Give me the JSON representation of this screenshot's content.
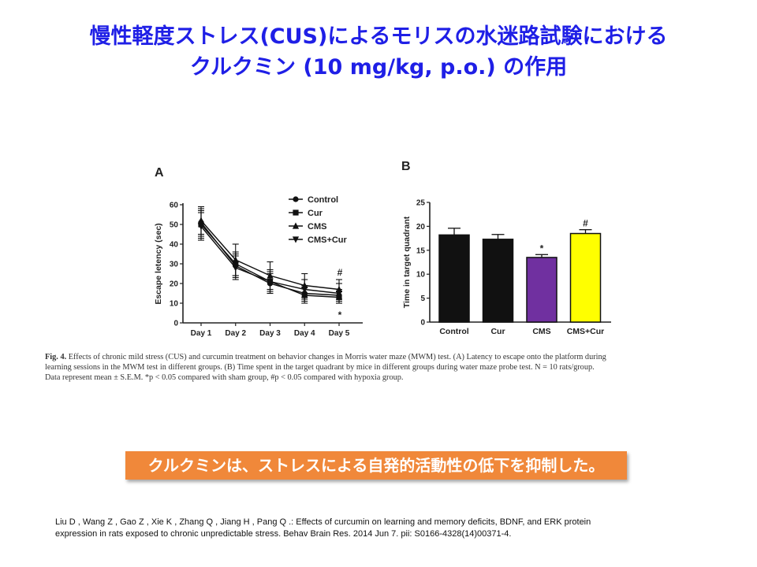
{
  "slide": {
    "title_line1": "慢性軽度ストレス(CUS)によるモリスの水迷路試験における",
    "title_line2": "クルクミン (10 mg/kg, p.o.) の作用",
    "conclusion": "クルクミンは、ストレスによる自発的活動性の低下を抑制した。",
    "citation_line1": "Liu D , Wang Z , Gao Z , Xie K , Zhang Q , Jiang H , Pang Q .: Effects of curcumin on learning and memory deficits, BDNF, and ERK protein",
    "citation_line2": "expression in rats exposed to chronic unpredictable stress. Behav Brain Res. 2014 Jun 7. pii: S0166-4328(14)00371-4."
  },
  "figure_caption": {
    "label": "Fig. 4.",
    "line1": "Effects of chronic mild stress (CUS) and curcumin treatment on behavior changes in Morris water maze (MWM) test. (A) Latency to escape onto the platform during",
    "line2": "learning sessions in the MWM test in different groups. (B) Time spent in the target quadrant by mice in different groups during water maze probe test. N = 10 rats/group.",
    "line3": "Data represent mean ± S.E.M. *p < 0.05 compared with sham group, #p < 0.05 compared with hypoxia group."
  },
  "chart_data": [
    {
      "panel": "A",
      "type": "line",
      "ylabel": "Escape letency (sec)",
      "ylim": [
        0,
        60
      ],
      "yticks": [
        "0",
        "10",
        "20",
        "30",
        "40",
        "50",
        "60"
      ],
      "categories": [
        "Day 1",
        "Day 2",
        "Day 3",
        "Day 4",
        "Day 5"
      ],
      "series": [
        {
          "name": "Control",
          "marker": "circle",
          "values": [
            51,
            29,
            20,
            15,
            14
          ],
          "errors": [
            7,
            6,
            5,
            4,
            3
          ]
        },
        {
          "name": "Cur",
          "marker": "square",
          "values": [
            50,
            30,
            21,
            14,
            13
          ],
          "errors": [
            7,
            6,
            5,
            4,
            3
          ]
        },
        {
          "name": "CMS",
          "marker": "triangle-up",
          "values": [
            52,
            32,
            24,
            19,
            17
          ],
          "errors": [
            7,
            8,
            7,
            6,
            5
          ]
        },
        {
          "name": "CMS+Cur",
          "marker": "triangle-down",
          "values": [
            49,
            28,
            21,
            17,
            15
          ],
          "errors": [
            7,
            6,
            6,
            5,
            5
          ]
        }
      ],
      "annotations": [
        {
          "category": "Day 5",
          "text": "#",
          "position": "above"
        },
        {
          "category": "Day 5",
          "text": "*",
          "position": "below"
        }
      ],
      "legend_position": "top-right",
      "grid": false
    },
    {
      "panel": "B",
      "type": "bar",
      "ylabel": "Time in target quadrant",
      "ylim": [
        0,
        25
      ],
      "yticks": [
        "0",
        "5",
        "10",
        "15",
        "20",
        "25"
      ],
      "categories": [
        "Control",
        "Cur",
        "CMS",
        "CMS+Cur"
      ],
      "values": [
        18.2,
        17.3,
        13.5,
        18.5
      ],
      "errors": [
        1.4,
        1.0,
        0.6,
        0.8
      ],
      "colors": [
        "#111111",
        "#111111",
        "#7030a0",
        "#ffff00"
      ],
      "annotations": [
        "",
        "",
        "*",
        "#"
      ],
      "grid": false
    }
  ]
}
